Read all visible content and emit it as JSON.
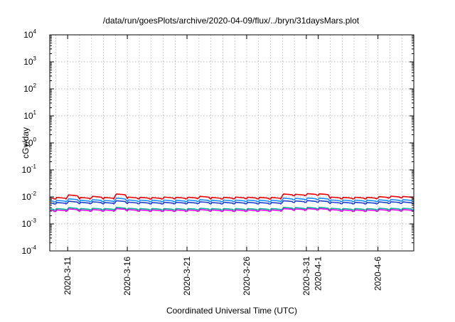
{
  "chart_data": {
    "type": "line",
    "title": "/data/run/goesPlots/archive/2020-04-09/flux/../bryn/31daysMars.plot",
    "xlabel": "Coordinated Universal Time (UTC)",
    "ylabel": "cGy/day",
    "yscale": "log",
    "ylim": [
      0.0001,
      10000
    ],
    "xlim": [
      "2020-03-09T12:00",
      "2020-04-09T00:00"
    ],
    "grid": true,
    "legend": "none",
    "x_ticks": [
      {
        "date": "2020-03-11",
        "label": "2020-3-11"
      },
      {
        "date": "2020-03-16",
        "label": "2020-3-16"
      },
      {
        "date": "2020-03-21",
        "label": "2020-3-21"
      },
      {
        "date": "2020-03-26",
        "label": "2020-3-26"
      },
      {
        "date": "2020-03-31",
        "label": "2020-3-31"
      },
      {
        "date": "2020-04-01",
        "label": "2020-4-1"
      },
      {
        "date": "2020-04-06",
        "label": "2020-4-6"
      }
    ],
    "y_ticks": [
      {
        "value": 0.0001,
        "base": "10",
        "exp": "-4"
      },
      {
        "value": 0.001,
        "base": "10",
        "exp": "-3"
      },
      {
        "value": 0.01,
        "base": "10",
        "exp": "-2"
      },
      {
        "value": 0.1,
        "base": "10",
        "exp": "-1"
      },
      {
        "value": 1,
        "base": "10",
        "exp": "0"
      },
      {
        "value": 10,
        "base": "10",
        "exp": "1"
      },
      {
        "value": 100,
        "base": "10",
        "exp": "2"
      },
      {
        "value": 1000,
        "base": "10",
        "exp": "3"
      },
      {
        "value": 10000,
        "base": "10",
        "exp": "4"
      }
    ],
    "series": [
      {
        "color": "#e8000b",
        "values": [
          0.0095,
          0.0118,
          0.0095,
          0.0105,
          0.0095,
          0.0128,
          0.0098,
          0.0096,
          0.0094,
          0.0098,
          0.0096,
          0.0097,
          0.0105,
          0.0095,
          0.0096,
          0.0098,
          0.0097,
          0.0096,
          0.0095,
          0.0128,
          0.0125,
          0.0132,
          0.013,
          0.0098,
          0.0096,
          0.0097,
          0.0096,
          0.0102,
          0.0106,
          0.0104,
          0.0098
        ]
      },
      {
        "color": "#1a8cff",
        "values": [
          0.0074,
          0.0085,
          0.0075,
          0.0079,
          0.0074,
          0.009,
          0.0077,
          0.0076,
          0.0075,
          0.0076,
          0.0075,
          0.0076,
          0.0079,
          0.0075,
          0.0076,
          0.0076,
          0.0076,
          0.0075,
          0.0075,
          0.009,
          0.0088,
          0.0091,
          0.009,
          0.0077,
          0.0076,
          0.0076,
          0.0075,
          0.0078,
          0.008,
          0.0079,
          0.0077
        ]
      },
      {
        "color": "#1f3fcf",
        "values": [
          0.0062,
          0.0069,
          0.0063,
          0.0066,
          0.0062,
          0.0072,
          0.0064,
          0.0063,
          0.0062,
          0.0063,
          0.0063,
          0.0063,
          0.0066,
          0.0062,
          0.0063,
          0.0063,
          0.0063,
          0.0062,
          0.0062,
          0.0072,
          0.0071,
          0.0073,
          0.0072,
          0.0064,
          0.0063,
          0.0063,
          0.0062,
          0.0065,
          0.0066,
          0.0065,
          0.0064
        ]
      },
      {
        "color": "#00b3a0",
        "values": [
          0.0037,
          0.004,
          0.0037,
          0.0038,
          0.0037,
          0.0041,
          0.0038,
          0.0037,
          0.0037,
          0.0037,
          0.0037,
          0.0037,
          0.0038,
          0.0037,
          0.0037,
          0.0037,
          0.0037,
          0.0037,
          0.0037,
          0.0041,
          0.004,
          0.0041,
          0.0041,
          0.0038,
          0.0037,
          0.0037,
          0.0037,
          0.0038,
          0.0038,
          0.0038,
          0.0038
        ]
      },
      {
        "color": "#e600e6",
        "values": [
          0.0033,
          0.0036,
          0.0033,
          0.0034,
          0.0033,
          0.0037,
          0.0034,
          0.0033,
          0.0033,
          0.0033,
          0.0033,
          0.0033,
          0.0034,
          0.0033,
          0.0033,
          0.0033,
          0.0033,
          0.0033,
          0.0033,
          0.0037,
          0.0036,
          0.0037,
          0.0037,
          0.0034,
          0.0033,
          0.0033,
          0.0033,
          0.0034,
          0.0034,
          0.0034,
          0.0034
        ]
      }
    ]
  }
}
